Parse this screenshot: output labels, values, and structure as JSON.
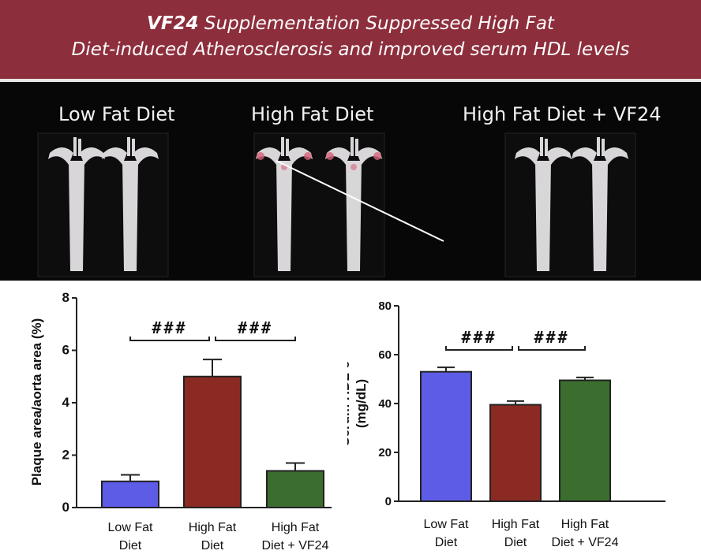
{
  "banner": {
    "title_bold": "VF24",
    "title_line1_rest": " Supplementation Suppressed High Fat",
    "title_line2": "Diet-induced Atherosclerosis and improved serum HDL levels"
  },
  "photo": {
    "labels": [
      "Low Fat Diet",
      "High Fat Diet",
      "High Fat Diet + VF24"
    ]
  },
  "colors": {
    "banner": "#8d2e3c",
    "low_fat": "#5c5ce6",
    "high_fat": "#8b2a22",
    "vf24": "#3b6e2e"
  },
  "chart_data": [
    {
      "type": "bar",
      "categories": [
        "Low Fat\nDiet",
        "High Fat\nDiet",
        "High Fat\nDiet + VF24"
      ],
      "values": [
        1.0,
        5.0,
        1.4
      ],
      "errors": [
        0.25,
        0.65,
        0.3
      ],
      "ylabel": "Plaque area/aorta area (%)",
      "ylim": [
        0,
        8
      ],
      "yticks": [
        0,
        2,
        4,
        6,
        8
      ],
      "annotations": [
        "###",
        "###"
      ]
    },
    {
      "type": "bar",
      "categories": [
        "Low Fat\nDiet",
        "High Fat\nDiet",
        "High Fat\nDiet + VF24"
      ],
      "values": [
        53,
        39.5,
        49.5
      ],
      "errors": [
        1.8,
        1.5,
        1.2
      ],
      "ylabel": "Serum HDL-c\n(mg/dL)",
      "ylim": [
        0,
        80
      ],
      "yticks": [
        0,
        20,
        40,
        60,
        80
      ],
      "annotations": [
        "###",
        "###"
      ]
    }
  ]
}
